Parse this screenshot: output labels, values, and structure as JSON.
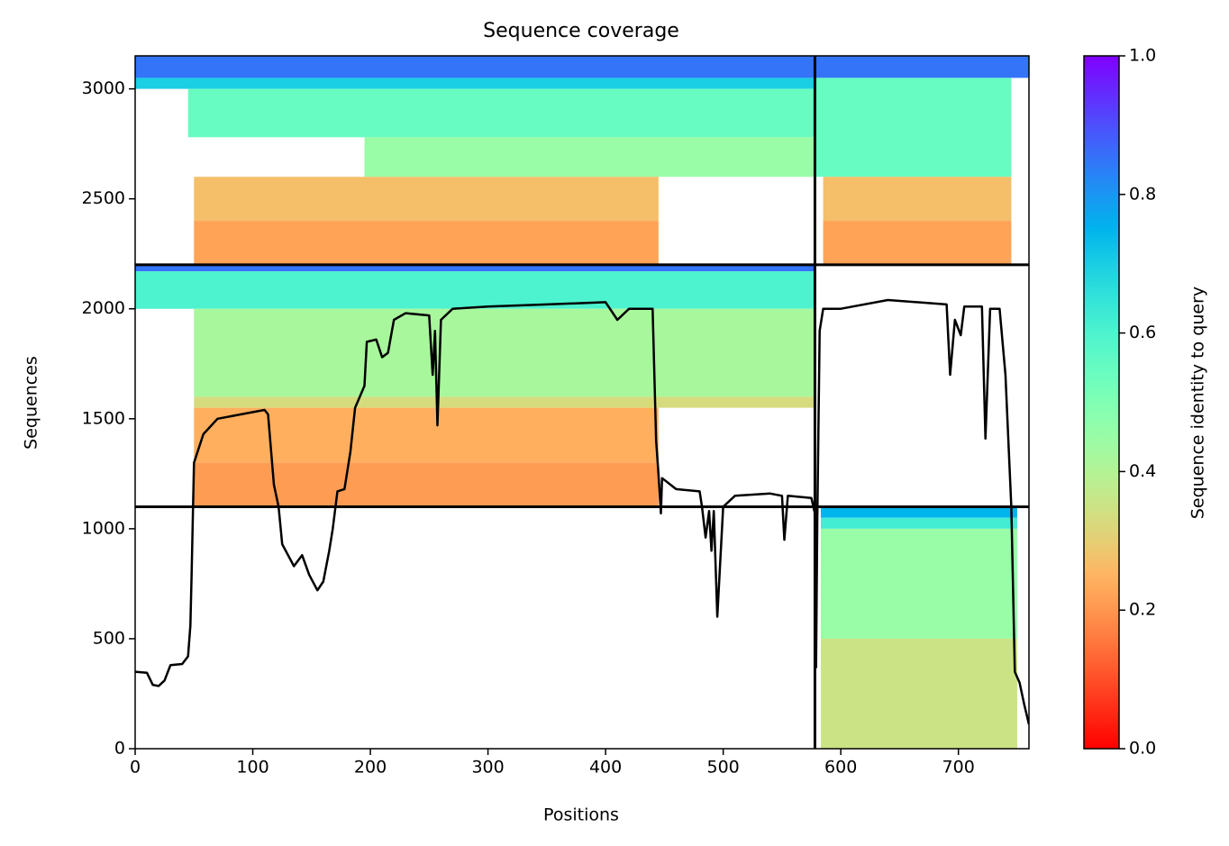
{
  "chart_data": {
    "type": "coverage",
    "title": "Sequence coverage",
    "xlabel": "Positions",
    "ylabel": "Sequences",
    "xlim": [
      0,
      760
    ],
    "ylim": [
      0,
      3150
    ],
    "xticks": [
      0,
      100,
      200,
      300,
      400,
      500,
      600,
      700
    ],
    "yticks": [
      0,
      500,
      1000,
      1500,
      2000,
      2500,
      3000
    ],
    "colormap": "rainbow_r",
    "colorbar": {
      "label": "Sequence identity to query",
      "clim": [
        0,
        1
      ],
      "ticks": [
        {
          "value": 0,
          "label": "0.0"
        },
        {
          "value": 0.2,
          "label": "0.2"
        },
        {
          "value": 0.4,
          "label": "0.4"
        },
        {
          "value": 0.6,
          "label": "0.6"
        },
        {
          "value": 0.8,
          "label": "0.8"
        },
        {
          "value": 1,
          "label": "1.0"
        }
      ]
    },
    "bands": [
      {
        "x": [
          0,
          760
        ],
        "y": [
          3050,
          3150
        ],
        "identity": 0.85
      },
      {
        "x": [
          0,
          578
        ],
        "y": [
          3000,
          3050
        ],
        "identity": 0.7
      },
      {
        "x": [
          45,
          578
        ],
        "y": [
          2780,
          3000
        ],
        "identity": 0.55
      },
      {
        "x": [
          195,
          578
        ],
        "y": [
          2600,
          2780
        ],
        "identity": 0.45
      },
      {
        "x": [
          50,
          445
        ],
        "y": [
          2400,
          2600
        ],
        "identity": 0.27
      },
      {
        "x": [
          50,
          445
        ],
        "y": [
          2200,
          2400
        ],
        "identity": 0.22
      },
      {
        "x": [
          578,
          745
        ],
        "y": [
          2600,
          3050
        ],
        "identity": 0.55
      },
      {
        "x": [
          585,
          745
        ],
        "y": [
          2400,
          2600
        ],
        "identity": 0.27
      },
      {
        "x": [
          585,
          745
        ],
        "y": [
          2200,
          2400
        ],
        "identity": 0.22
      },
      {
        "x": [
          0,
          578
        ],
        "y": [
          2170,
          2200
        ],
        "identity": 0.85
      },
      {
        "x": [
          0,
          578
        ],
        "y": [
          2000,
          2170
        ],
        "identity": 0.6
      },
      {
        "x": [
          50,
          578
        ],
        "y": [
          1600,
          2000
        ],
        "identity": 0.42
      },
      {
        "x": [
          50,
          578
        ],
        "y": [
          1550,
          1600
        ],
        "identity": 0.33
      },
      {
        "x": [
          50,
          445
        ],
        "y": [
          1300,
          1550
        ],
        "identity": 0.24
      },
      {
        "x": [
          50,
          445
        ],
        "y": [
          1100,
          1300
        ],
        "identity": 0.21
      },
      {
        "x": [
          583,
          750
        ],
        "y": [
          1050,
          1100
        ],
        "identity": 0.75
      },
      {
        "x": [
          583,
          750
        ],
        "y": [
          1000,
          1050
        ],
        "identity": 0.62
      },
      {
        "x": [
          583,
          750
        ],
        "y": [
          500,
          1000
        ],
        "identity": 0.45
      },
      {
        "x": [
          583,
          750
        ],
        "y": [
          0,
          500
        ],
        "identity": 0.35
      }
    ],
    "hlines": [
      1100,
      2200
    ],
    "vlines": [
      578
    ],
    "coverage": {
      "color": "#000000",
      "x": [
        0,
        10,
        15,
        20,
        25,
        30,
        40,
        45,
        47,
        48,
        50,
        58,
        70,
        90,
        110,
        113,
        118,
        122,
        125,
        130,
        135,
        142,
        148,
        155,
        160,
        165,
        168,
        172,
        178,
        183,
        187,
        195,
        197,
        205,
        210,
        215,
        220,
        230,
        250,
        253,
        255,
        257,
        260,
        270,
        300,
        350,
        400,
        410,
        420,
        440,
        443,
        445,
        447,
        448,
        460,
        480,
        482,
        485,
        488,
        490,
        492,
        495,
        500,
        510,
        540,
        550,
        552,
        555,
        575,
        578,
        579,
        580,
        582,
        585,
        600,
        640,
        690,
        693,
        697,
        702,
        705,
        720,
        723,
        727,
        735,
        740,
        745,
        748,
        752,
        756,
        760
      ],
      "values": [
        350,
        345,
        290,
        285,
        310,
        380,
        385,
        420,
        560,
        800,
        1300,
        1430,
        1500,
        1520,
        1540,
        1520,
        1200,
        1100,
        930,
        880,
        830,
        880,
        790,
        720,
        760,
        900,
        1000,
        1170,
        1180,
        1350,
        1550,
        1650,
        1850,
        1860,
        1780,
        1800,
        1950,
        1980,
        1970,
        1700,
        1900,
        1470,
        1950,
        2000,
        2010,
        2020,
        2030,
        1950,
        2000,
        2000,
        1400,
        1250,
        1070,
        1230,
        1180,
        1170,
        1100,
        960,
        1080,
        900,
        1080,
        600,
        1100,
        1150,
        1160,
        1150,
        950,
        1150,
        1140,
        1070,
        370,
        1050,
        1900,
        2000,
        2000,
        2040,
        2020,
        1700,
        1950,
        1880,
        2010,
        2010,
        1410,
        2000,
        2000,
        1700,
        1100,
        350,
        300,
        200,
        110
      ]
    }
  }
}
